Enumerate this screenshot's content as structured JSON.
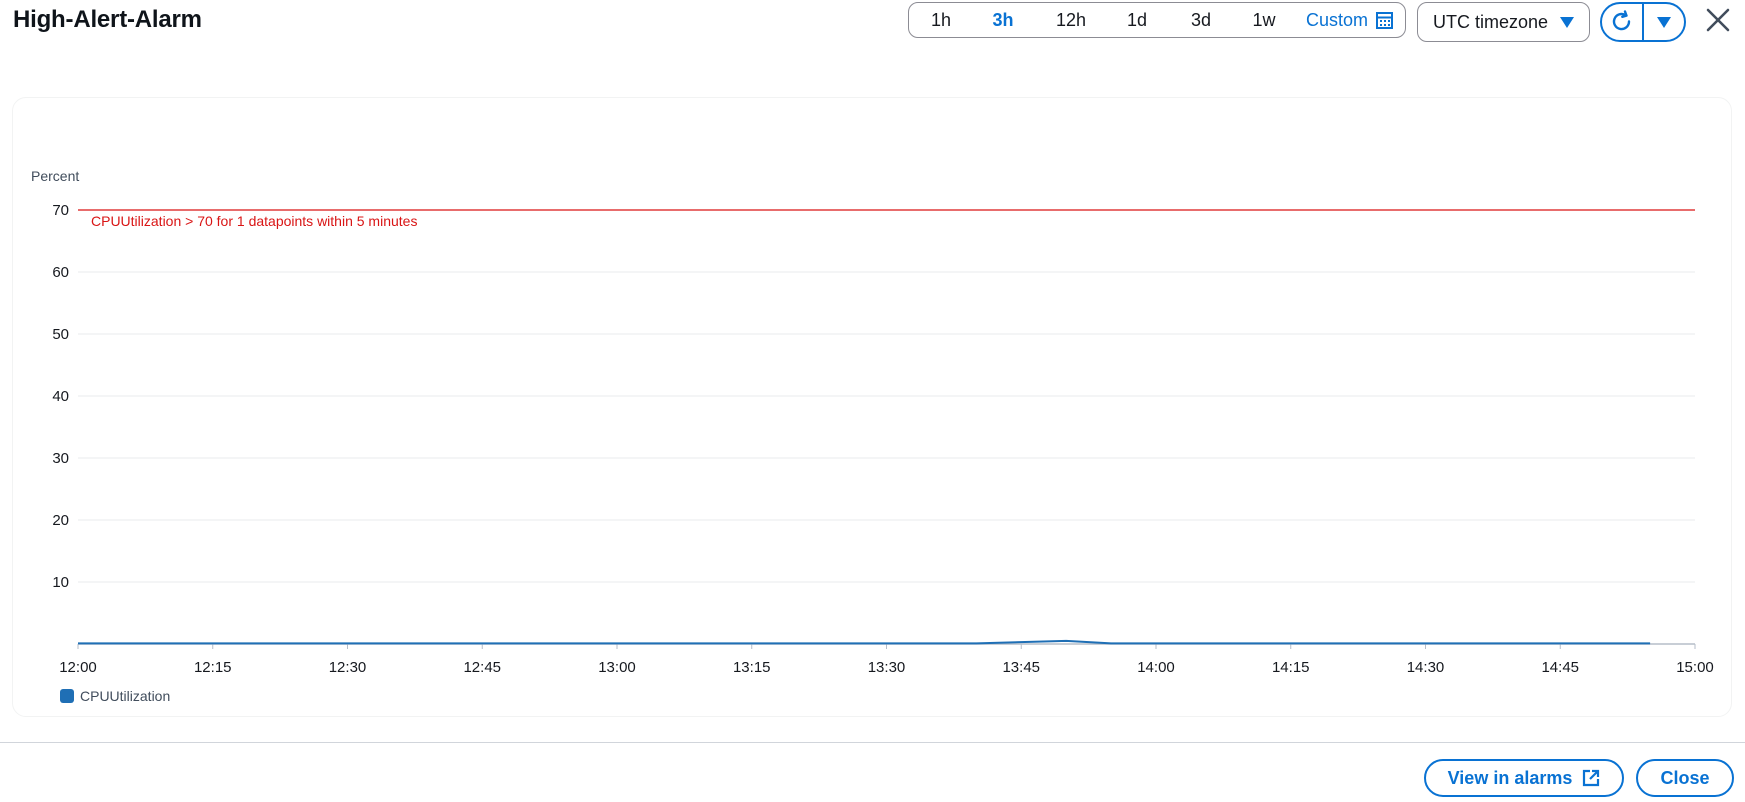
{
  "title": "High-Alert-Alarm",
  "time_ranges": [
    {
      "label": "1h",
      "active": false
    },
    {
      "label": "3h",
      "active": true
    },
    {
      "label": "12h",
      "active": false
    },
    {
      "label": "1d",
      "active": false
    },
    {
      "label": "3d",
      "active": false
    },
    {
      "label": "1w",
      "active": false
    }
  ],
  "custom_label": "Custom",
  "timezone_label": "UTC timezone",
  "colors": {
    "accent": "#0972d3",
    "threshold": "#d91515",
    "grid": "#e9ebed",
    "series": "#1f6fb5"
  },
  "footer": {
    "view_label": "View in alarms",
    "close_label": "Close"
  },
  "chart_data": {
    "type": "line",
    "ylabel": "Percent",
    "ylim": [
      0,
      70
    ],
    "yticks": [
      10,
      20,
      30,
      40,
      50,
      60,
      70
    ],
    "xticks": [
      "12:00",
      "12:15",
      "12:30",
      "12:45",
      "13:00",
      "13:15",
      "13:30",
      "13:45",
      "14:00",
      "14:15",
      "14:30",
      "14:45",
      "15:00"
    ],
    "xlim_minutes": [
      0,
      180
    ],
    "threshold": {
      "value": 70,
      "label": "CPUUtilization > 70 for 1 datapoints within 5 minutes"
    },
    "series": [
      {
        "name": "CPUUtilization",
        "x": [
          "12:00",
          "13:40",
          "13:50",
          "13:55",
          "14:00",
          "14:55"
        ],
        "values": [
          0.1,
          0.1,
          0.5,
          0.1,
          0.1,
          0.1
        ]
      }
    ],
    "grid": true,
    "legend": "bottom-left"
  }
}
